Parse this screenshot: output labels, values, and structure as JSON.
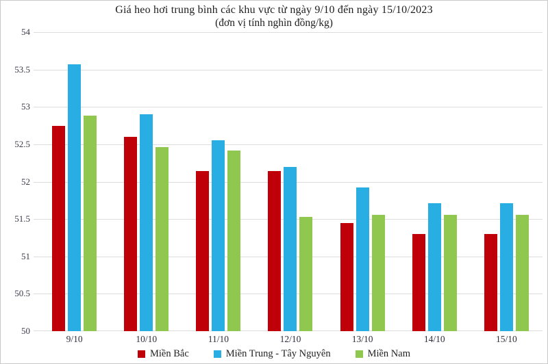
{
  "title": "Giá heo hơi trung bình các khu vực từ ngày 9/10 đến ngày 15/10/2023",
  "subtitle": "(đơn vị tính nghìn đồng/kg)",
  "chart_data": {
    "type": "bar",
    "categories": [
      "9/10",
      "10/10",
      "11/10",
      "12/10",
      "13/10",
      "14/10",
      "15/10"
    ],
    "series": [
      {
        "name": "Miền Bắc",
        "color": "#c00009",
        "values": [
          52.75,
          52.6,
          52.14,
          52.14,
          51.45,
          51.3,
          51.3
        ]
      },
      {
        "name": "Miền Trung - Tây Nguyên",
        "color": "#29aee4",
        "values": [
          53.57,
          52.9,
          52.55,
          52.2,
          51.92,
          51.71,
          51.71
        ]
      },
      {
        "name": "Miền Nam",
        "color": "#90c84f",
        "values": [
          52.88,
          52.46,
          52.42,
          51.53,
          51.56,
          51.56,
          51.56
        ]
      }
    ],
    "ylim": [
      50,
      54
    ],
    "ytick_step": 0.5,
    "grid": true,
    "legend_position": "bottom",
    "colors": {
      "gridline": "#dcdcdc",
      "axis_text": "#3b3b4b",
      "title_text": "#1c1c1c"
    }
  }
}
